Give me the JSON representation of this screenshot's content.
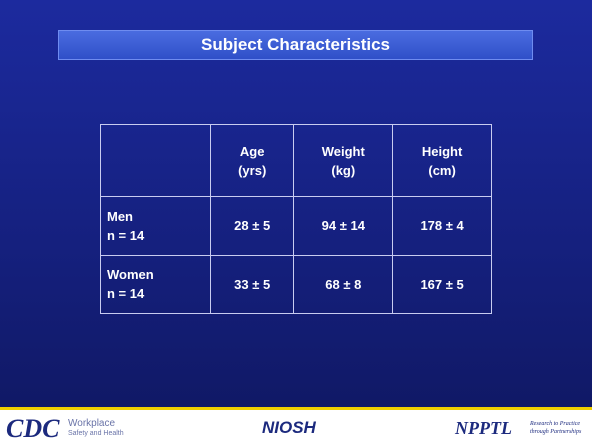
{
  "title": "Subject Characteristics",
  "table": {
    "header": [
      [
        "Age",
        "(yrs)"
      ],
      [
        "Weight",
        "(kg)"
      ],
      [
        "Height",
        "(cm)"
      ]
    ],
    "rows": [
      {
        "label": [
          "Men",
          "n = 14"
        ],
        "cells": [
          "28 ± 5",
          "94 ± 14",
          "178 ± 4"
        ]
      },
      {
        "label": [
          "Women",
          "n = 14"
        ],
        "cells": [
          "33 ± 5",
          "68 ± 8",
          "167 ± 5"
        ]
      }
    ]
  },
  "footer": {
    "cdc": "CDC",
    "cdc_line1": "Workplace",
    "cdc_line2": "Safety and Health",
    "niosh": "NIOSH",
    "npptl": "NPPTL",
    "npptl_line1": "Research to Practice",
    "npptl_line2": "through Partnerships"
  }
}
